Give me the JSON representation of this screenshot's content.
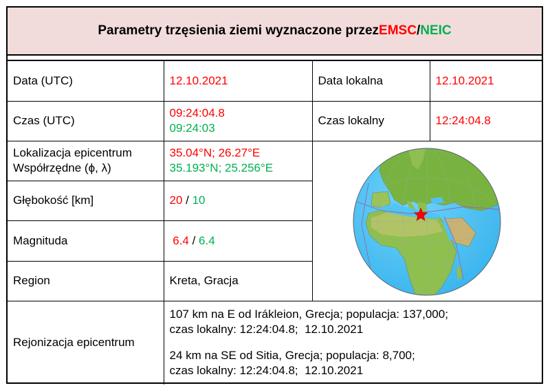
{
  "title": {
    "prefix": "Parametry trzęsienia ziemi wyznaczone przez ",
    "emsc": "EMSC",
    "slash": "/",
    "neic": "NEIC"
  },
  "rows": {
    "data_utc": {
      "label": "Data (UTC)",
      "value": "12.10.2021"
    },
    "data_lokalna": {
      "label": "Data lokalna",
      "value": "12.10.2021"
    },
    "czas_utc": {
      "label": "Czas (UTC)",
      "value_emsc": "09:24:04.8",
      "value_neic": "09:24:03"
    },
    "czas_lokalny": {
      "label": "Czas lokalny",
      "value": "12:24:04.8"
    },
    "lokalizacja": {
      "label_line1": "Lokalizacja epicentrum",
      "label_line2": "Współrzędne (ϕ, λ)",
      "value_emsc": "35.04°N; 26.27°E",
      "value_neic": "35.193°N; 25.256°E"
    },
    "glebokosc": {
      "label": "Głębokość [km]",
      "value_emsc": "20",
      "sep": " / ",
      "value_neic": "10"
    },
    "magnituda": {
      "label": "Magnituda",
      "value_emsc": "6.4",
      "sep": " / ",
      "value_neic": "6.4"
    },
    "region": {
      "label": "Region",
      "value": "Kreta, Gracja"
    },
    "rejonizacja": {
      "label": "Rejonizacja epicentrum",
      "entry1_line1": "107 km na E od Irákleion, Grecja; populacja: 137,000;",
      "entry1_line2": "czas lokalny: 12:24:04.8;  12.10.2021",
      "entry2_line1": "24 km na SE od Sitia, Grecja; populacja: 8,700;",
      "entry2_line2": "czas lokalny: 12:24:04.8;  12.10.2021"
    }
  },
  "globe": {
    "ocean_color": "#4fc3f7",
    "land_color": "#7cb342",
    "marker_color": "#ff0000",
    "marker_icon": "star-icon"
  },
  "colors": {
    "emsc": "#ff0000",
    "neic": "#00b050",
    "title_background": "#f2dcdb"
  }
}
